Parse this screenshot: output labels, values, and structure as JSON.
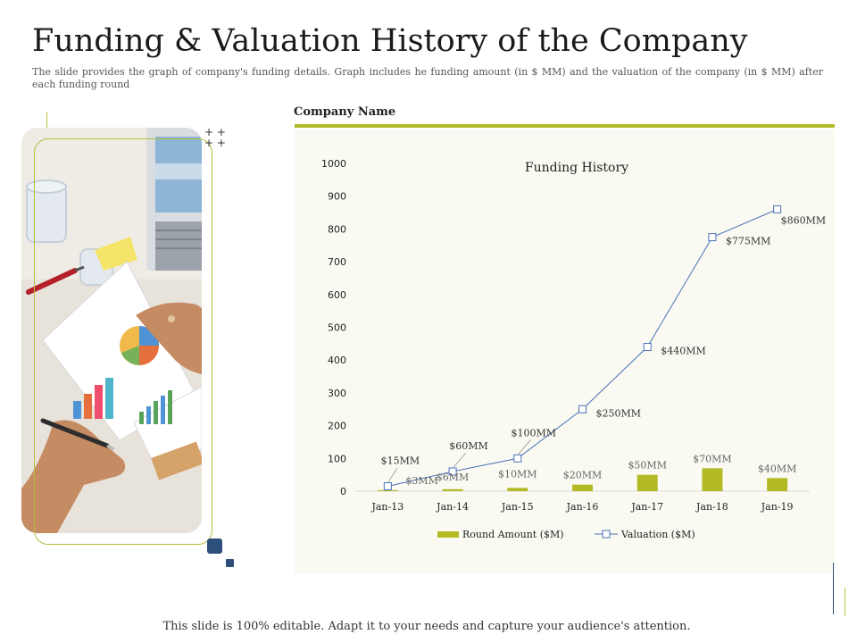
{
  "slide": {
    "title": "Funding & Valuation History of the Company",
    "subtitle": "The slide provides the graph of company's funding details. Graph includes he funding amount (in $ MM) and the valuation of the company (in $ MM) after each funding round",
    "company_label": "Company Name",
    "footer": "This slide is 100% editable. Adapt it to your needs and capture your audience's attention."
  },
  "colors": {
    "accent_olive": "#b3ba26",
    "accent_navy": "#2d4f7c",
    "line_blue": "#4a72b8",
    "chart_background": "#fafaf2"
  },
  "chart_data": {
    "type": "bar",
    "title": "Funding History",
    "categories": [
      "Jan-13",
      "Jan-14",
      "Jan-15",
      "Jan-16",
      "Jan-17",
      "Jan-18",
      "Jan-19"
    ],
    "ylim": [
      0,
      1000
    ],
    "yticks": [
      0,
      100,
      200,
      300,
      400,
      500,
      600,
      700,
      800,
      900,
      1000
    ],
    "grid": false,
    "legend_position": "bottom",
    "series": [
      {
        "name": "Round Amount ($M)",
        "type": "bar",
        "color": "#b3ba26",
        "values": [
          3,
          6,
          10,
          20,
          50,
          70,
          40
        ],
        "labels": [
          "$3MM",
          "$6MM",
          "$10MM",
          "$20MM",
          "$50MM",
          "$70MM",
          "$40MM"
        ]
      },
      {
        "name": "Valuation ($M)",
        "type": "line",
        "color": "#4a72b8",
        "values": [
          15,
          60,
          100,
          250,
          440,
          775,
          860
        ],
        "labels": [
          "$15MM",
          "$60MM",
          "$100MM",
          "$250MM",
          "$440MM",
          "$775MM",
          "$860MM"
        ]
      }
    ]
  }
}
